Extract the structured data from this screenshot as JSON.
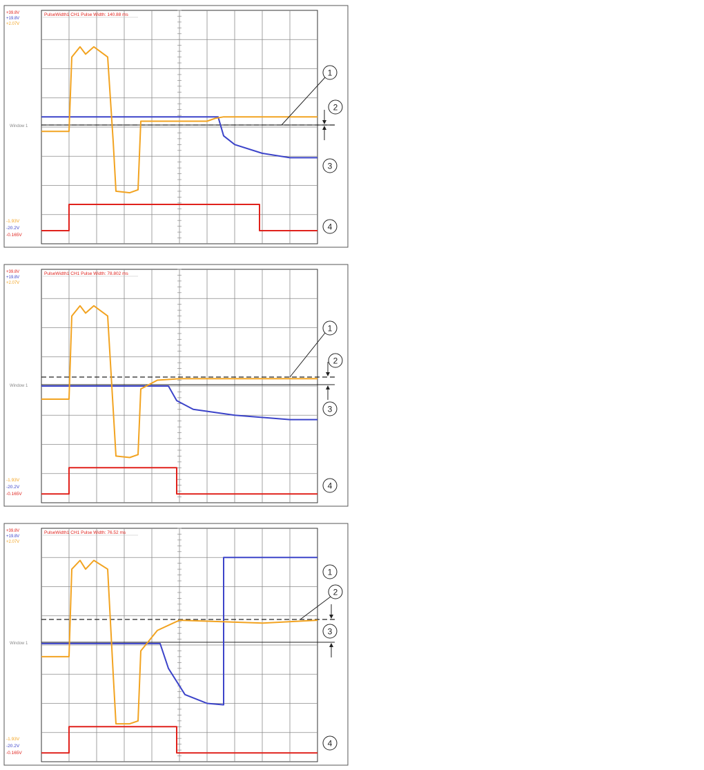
{
  "colors": {
    "red": "#e0211b",
    "blue": "#3b43c9",
    "orange": "#f2a320",
    "grid": "#8a8a8a",
    "frame": "#333333",
    "label_grey": "#888888"
  },
  "panels": [
    {
      "title": "PulseWidth1 CH1 Pulse Width: 140.88 ms",
      "scale_top": [
        "+39.8V",
        "+19.8V",
        "+2.07V"
      ],
      "scale_bottom": [
        "-1.93V",
        "-20.2V",
        "-0.165V"
      ],
      "window_label": "Window 1",
      "callouts": [
        "1",
        "2",
        "3",
        "4"
      ]
    },
    {
      "title": "PulseWidth1 CH1 Pulse Width: 78.802 ms",
      "scale_top": [
        "+39.8V",
        "+19.8V",
        "+2.07V"
      ],
      "scale_bottom": [
        "-1.93V",
        "-20.2V",
        "-0.165V"
      ],
      "window_label": "Window 1",
      "callouts": [
        "1",
        "2",
        "3",
        "4"
      ]
    },
    {
      "title": "PulseWidth1 CH1 Pulse Width: 76.52 ms",
      "scale_top": [
        "+39.8V",
        "+19.8V",
        "+2.07V"
      ],
      "scale_bottom": [
        "-1.93V",
        "-20.2V",
        "-0.165V"
      ],
      "window_label": "Window 1",
      "callouts": [
        "1",
        "2",
        "3",
        "4"
      ]
    }
  ],
  "chart_data": [
    {
      "type": "line",
      "title": "PulseWidth1 CH1 Pulse Width: 140.88 ms",
      "xlim": [
        0,
        10
      ],
      "ylim": [
        0,
        8
      ],
      "grid": true,
      "series": [
        {
          "color": "#e0211b",
          "x": [
            0,
            1,
            1,
            7.9,
            7.9,
            10
          ],
          "y": [
            0.45,
            0.45,
            1.35,
            1.35,
            0.45,
            0.45
          ]
        },
        {
          "color": "#3b43c9",
          "x": [
            0,
            6.4,
            6.6,
            7,
            8,
            9,
            10
          ],
          "y": [
            4.35,
            4.35,
            3.7,
            3.4,
            3.1,
            2.95,
            2.95
          ]
        },
        {
          "color": "#f2a320",
          "x": [
            0,
            1,
            1.1,
            1.4,
            1.6,
            1.9,
            2.4,
            2.6,
            2.7,
            3.2,
            3.5,
            3.6,
            4,
            6,
            6.3,
            6.6,
            7,
            10
          ],
          "y": [
            3.85,
            3.85,
            6.4,
            6.75,
            6.5,
            6.75,
            6.4,
            3.5,
            1.8,
            1.75,
            1.85,
            4.2,
            4.2,
            4.2,
            4.3,
            4.35,
            4.35,
            4.35
          ]
        }
      ]
    },
    {
      "type": "line",
      "title": "PulseWidth1 CH1 Pulse Width: 78.802 ms",
      "xlim": [
        0,
        10
      ],
      "ylim": [
        0,
        8
      ],
      "grid": true,
      "series": [
        {
          "color": "#e0211b",
          "x": [
            0,
            1,
            1,
            4.9,
            4.9,
            10
          ],
          "y": [
            0.3,
            0.3,
            1.2,
            1.2,
            0.3,
            0.3
          ]
        },
        {
          "color": "#3b43c9",
          "x": [
            0,
            4.6,
            4.9,
            5.5,
            7,
            9,
            10
          ],
          "y": [
            4.0,
            4.0,
            3.5,
            3.2,
            3.0,
            2.85,
            2.85
          ]
        },
        {
          "color": "#f2a320",
          "x": [
            0,
            1,
            1.1,
            1.4,
            1.6,
            1.9,
            2.4,
            2.6,
            2.7,
            3.2,
            3.5,
            3.6,
            4.2,
            5,
            10
          ],
          "y": [
            3.55,
            3.55,
            6.4,
            6.75,
            6.5,
            6.75,
            6.4,
            3.2,
            1.6,
            1.55,
            1.65,
            3.9,
            4.2,
            4.25,
            4.25
          ]
        }
      ]
    },
    {
      "type": "line",
      "title": "PulseWidth1 CH1 Pulse Width: 76.52 ms",
      "xlim": [
        0,
        10
      ],
      "ylim": [
        0,
        8
      ],
      "grid": true,
      "series": [
        {
          "color": "#e0211b",
          "x": [
            0,
            1,
            1,
            4.9,
            4.9,
            10
          ],
          "y": [
            0.3,
            0.3,
            1.2,
            1.2,
            0.3,
            0.3
          ]
        },
        {
          "color": "#3b43c9",
          "x": [
            0,
            4.3,
            4.6,
            5.2,
            6,
            6.6,
            6.6,
            10
          ],
          "y": [
            4.05,
            4.05,
            3.2,
            2.3,
            2.0,
            1.95,
            7.0,
            7.0
          ]
        },
        {
          "color": "#f2a320",
          "x": [
            0,
            1,
            1.1,
            1.4,
            1.6,
            1.9,
            2.4,
            2.6,
            2.7,
            3.2,
            3.5,
            3.6,
            4.2,
            5,
            8,
            10
          ],
          "y": [
            3.6,
            3.6,
            6.6,
            6.9,
            6.6,
            6.9,
            6.6,
            3.0,
            1.3,
            1.3,
            1.4,
            3.8,
            4.5,
            4.85,
            4.75,
            4.85
          ]
        }
      ]
    }
  ]
}
